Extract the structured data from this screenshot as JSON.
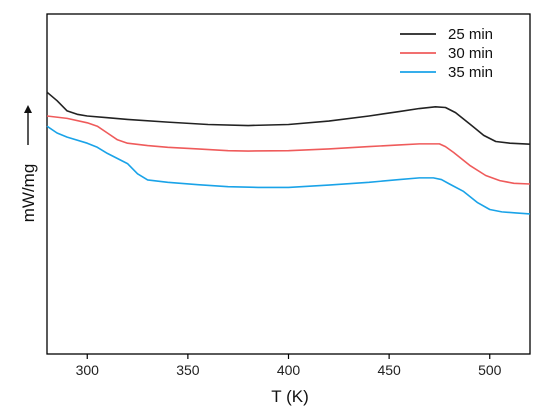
{
  "chart_data": {
    "type": "line",
    "title": "",
    "xlabel": "T (K)",
    "ylabel": "mW/mg",
    "ylabel_arrow": "up-arrow",
    "xlim": [
      280,
      520
    ],
    "ylim": [
      0,
      1
    ],
    "x_ticks": [
      300,
      350,
      400,
      450,
      500
    ],
    "y_ticks_shown": false,
    "grid": false,
    "legend_position": "top-right",
    "series": [
      {
        "name": "25 min",
        "color": "#222222",
        "points": [
          [
            280,
            0.77
          ],
          [
            285,
            0.745
          ],
          [
            290,
            0.715
          ],
          [
            295,
            0.705
          ],
          [
            300,
            0.7
          ],
          [
            310,
            0.695
          ],
          [
            320,
            0.69
          ],
          [
            340,
            0.682
          ],
          [
            360,
            0.675
          ],
          [
            380,
            0.672
          ],
          [
            400,
            0.675
          ],
          [
            420,
            0.685
          ],
          [
            440,
            0.7
          ],
          [
            455,
            0.713
          ],
          [
            465,
            0.722
          ],
          [
            473,
            0.727
          ],
          [
            478,
            0.725
          ],
          [
            483,
            0.71
          ],
          [
            490,
            0.677
          ],
          [
            497,
            0.643
          ],
          [
            503,
            0.625
          ],
          [
            510,
            0.62
          ],
          [
            520,
            0.617
          ]
        ]
      },
      {
        "name": "30 min",
        "color": "#ef5b5b",
        "points": [
          [
            280,
            0.7
          ],
          [
            290,
            0.693
          ],
          [
            300,
            0.68
          ],
          [
            305,
            0.67
          ],
          [
            310,
            0.65
          ],
          [
            315,
            0.63
          ],
          [
            320,
            0.62
          ],
          [
            330,
            0.613
          ],
          [
            340,
            0.608
          ],
          [
            355,
            0.603
          ],
          [
            370,
            0.598
          ],
          [
            380,
            0.597
          ],
          [
            400,
            0.598
          ],
          [
            420,
            0.603
          ],
          [
            440,
            0.61
          ],
          [
            455,
            0.615
          ],
          [
            465,
            0.618
          ],
          [
            475,
            0.618
          ],
          [
            478,
            0.61
          ],
          [
            482,
            0.593
          ],
          [
            490,
            0.555
          ],
          [
            498,
            0.525
          ],
          [
            505,
            0.51
          ],
          [
            512,
            0.502
          ],
          [
            520,
            0.5
          ]
        ]
      },
      {
        "name": "35 min",
        "color": "#1aa3e8",
        "points": [
          [
            280,
            0.67
          ],
          [
            285,
            0.65
          ],
          [
            290,
            0.638
          ],
          [
            300,
            0.62
          ],
          [
            305,
            0.608
          ],
          [
            310,
            0.59
          ],
          [
            315,
            0.575
          ],
          [
            320,
            0.56
          ],
          [
            325,
            0.53
          ],
          [
            330,
            0.512
          ],
          [
            340,
            0.505
          ],
          [
            355,
            0.498
          ],
          [
            370,
            0.492
          ],
          [
            385,
            0.49
          ],
          [
            400,
            0.49
          ],
          [
            420,
            0.497
          ],
          [
            440,
            0.505
          ],
          [
            455,
            0.513
          ],
          [
            465,
            0.518
          ],
          [
            472,
            0.518
          ],
          [
            476,
            0.513
          ],
          [
            480,
            0.5
          ],
          [
            487,
            0.478
          ],
          [
            494,
            0.445
          ],
          [
            500,
            0.425
          ],
          [
            506,
            0.418
          ],
          [
            513,
            0.415
          ],
          [
            520,
            0.412
          ]
        ]
      }
    ]
  }
}
